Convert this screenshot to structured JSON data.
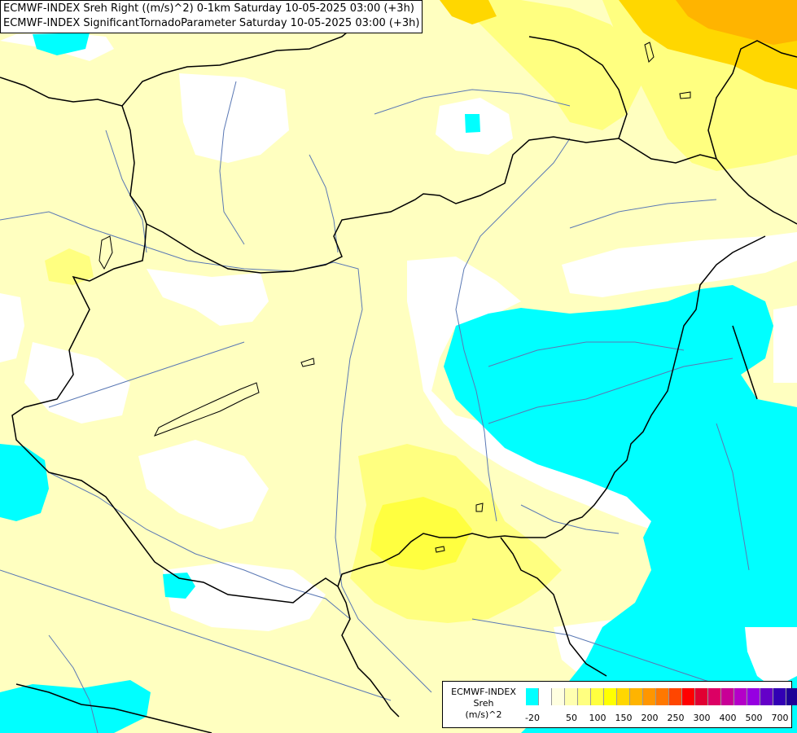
{
  "header": {
    "lines": [
      "ECMWF-INDEX Sreh Right ((m/s)^2) 0-1km Saturday 10-05-2025 03:00 (+3h)",
      "ECMWF-INDEX SignificantTornadoParameter Saturday 10-05-2025 03:00 (+3h)"
    ]
  },
  "legend": {
    "title_lines": [
      "ECMWF-INDEX",
      "Sreh",
      "(m/s)^2"
    ],
    "colors": [
      "#00ffff",
      "#ffffff",
      "#ffffe0",
      "#ffffb0",
      "#ffff80",
      "#ffff40",
      "#ffff00",
      "#ffd700",
      "#ffb400",
      "#ff9600",
      "#ff7800",
      "#ff4600",
      "#ff0000",
      "#e10032",
      "#dc0064",
      "#c80096",
      "#b400c8",
      "#9600e1",
      "#6400c8",
      "#3200b4",
      "#1e0096"
    ],
    "ticks": [
      "-20",
      "50",
      "100",
      "150",
      "200",
      "250",
      "300",
      "400",
      "500",
      "700"
    ]
  },
  "map": {
    "colors": {
      "cyan": "#00ffff",
      "pale_yellow": "#ffffc0",
      "yellow": "#ffff80",
      "yellow_strong": "#ffff40",
      "gold": "#ffd700",
      "orange": "#ffb400",
      "country_border": "#000000",
      "river": "#5a78b4"
    }
  }
}
